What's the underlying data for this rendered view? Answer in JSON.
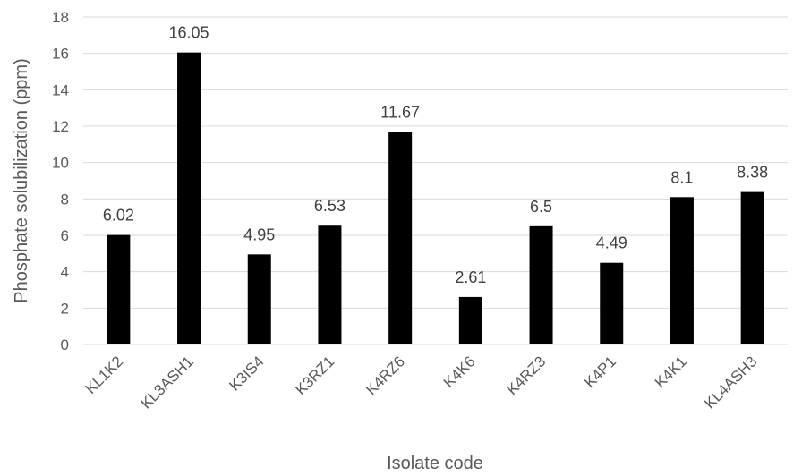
{
  "chart_data": {
    "type": "bar",
    "title": "",
    "xlabel": "Isolate code",
    "ylabel": "Phosphate solubilization (ppm)",
    "categories": [
      "KL1K2",
      "KL3ASH1",
      "K3IS4",
      "K3RZ1",
      "K4RZ6",
      "K4K6",
      "K4RZ3",
      "K4P1",
      "K4K1",
      "KL4ASH3"
    ],
    "values": [
      6.02,
      16.05,
      4.95,
      6.53,
      11.67,
      2.61,
      6.5,
      4.49,
      8.1,
      8.38
    ],
    "data_labels": [
      "6.02",
      "16.05",
      "4.95",
      "6.53",
      "11.67",
      "2.61",
      "6.5",
      "4.49",
      "8.1",
      "8.38"
    ],
    "ylim": [
      0,
      18
    ],
    "yticks": [
      0,
      2,
      4,
      6,
      8,
      10,
      12,
      14,
      16,
      18
    ],
    "grid": true,
    "legend": "none",
    "bar_color": "#000000",
    "grid_color": "#d9d9d9"
  }
}
